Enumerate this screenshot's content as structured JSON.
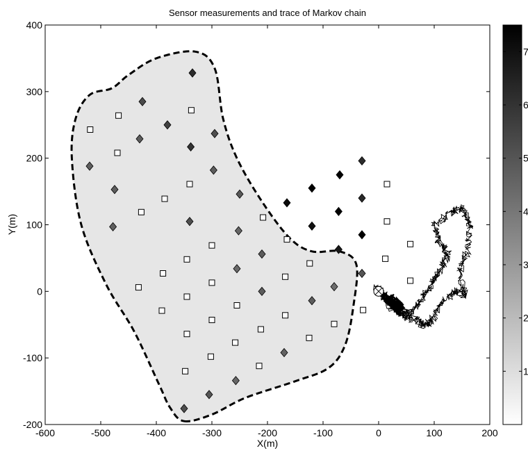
{
  "chart_data": {
    "type": "scatter",
    "title": "Sensor measurements and trace of Markov chain",
    "xlabel": "X(m)",
    "ylabel": "Y(m)",
    "xlim": [
      -600,
      200
    ],
    "ylim": [
      -200,
      400
    ],
    "xticks": [
      "-600",
      "-500",
      "-400",
      "-300",
      "-200",
      "-100",
      "0",
      "100",
      "200"
    ],
    "yticks": [
      "-200",
      "-100",
      "0",
      "100",
      "200",
      "300",
      "400"
    ],
    "grid": false,
    "colorbar": {
      "range": [
        0,
        7.5
      ],
      "ticks": [
        "1",
        "2",
        "3",
        "4",
        "5",
        "6",
        "7"
      ],
      "colormap": "white-to-black"
    },
    "region_boundary": [
      [
        -350,
        -195
      ],
      [
        -300,
        -185
      ],
      [
        -240,
        -160
      ],
      [
        -150,
        -135
      ],
      [
        -90,
        -115
      ],
      [
        -60,
        -80
      ],
      [
        -45,
        -20
      ],
      [
        -40,
        40
      ],
      [
        -70,
        60
      ],
      [
        -120,
        60
      ],
      [
        -160,
        80
      ],
      [
        -210,
        135
      ],
      [
        -255,
        200
      ],
      [
        -280,
        260
      ],
      [
        -295,
        335
      ],
      [
        -330,
        360
      ],
      [
        -400,
        350
      ],
      [
        -450,
        325
      ],
      [
        -480,
        305
      ],
      [
        -520,
        295
      ],
      [
        -545,
        260
      ],
      [
        -552,
        200
      ],
      [
        -535,
        100
      ],
      [
        -490,
        10
      ],
      [
        -440,
        -60
      ],
      [
        -395,
        -140
      ],
      [
        -375,
        -175
      ]
    ],
    "diamond_sensors": [
      {
        "x": -335,
        "y": 328,
        "v": 6.2
      },
      {
        "x": -425,
        "y": 285,
        "v": 5.3
      },
      {
        "x": -380,
        "y": 250,
        "v": 5.6
      },
      {
        "x": -295,
        "y": 237,
        "v": 5.2
      },
      {
        "x": -430,
        "y": 229,
        "v": 4.8
      },
      {
        "x": -338,
        "y": 217,
        "v": 6.0
      },
      {
        "x": -520,
        "y": 188,
        "v": 4.7
      },
      {
        "x": -297,
        "y": 182,
        "v": 4.8
      },
      {
        "x": -475,
        "y": 153,
        "v": 4.8
      },
      {
        "x": -250,
        "y": 146,
        "v": 4.9
      },
      {
        "x": -340,
        "y": 105,
        "v": 5.2
      },
      {
        "x": -478,
        "y": 97,
        "v": 4.7
      },
      {
        "x": -252,
        "y": 91,
        "v": 4.5
      },
      {
        "x": -210,
        "y": 56,
        "v": 4.8
      },
      {
        "x": -255,
        "y": 34,
        "v": 4.4
      },
      {
        "x": -210,
        "y": 0,
        "v": 4.8
      },
      {
        "x": -120,
        "y": -14,
        "v": 4.8
      },
      {
        "x": -80,
        "y": 7,
        "v": 4.3
      },
      {
        "x": -30,
        "y": 27,
        "v": 5.0
      },
      {
        "x": -170,
        "y": -92,
        "v": 4.6
      },
      {
        "x": -257,
        "y": -134,
        "v": 4.5
      },
      {
        "x": -305,
        "y": -155,
        "v": 5.0
      },
      {
        "x": -350,
        "y": -176,
        "v": 5.2
      },
      {
        "x": -165,
        "y": 133,
        "v": 7.2
      },
      {
        "x": -120,
        "y": 155,
        "v": 7.5
      },
      {
        "x": -70,
        "y": 175,
        "v": 7.5
      },
      {
        "x": -30,
        "y": 196,
        "v": 6.2
      },
      {
        "x": -120,
        "y": 98,
        "v": 7.0
      },
      {
        "x": -72,
        "y": 120,
        "v": 7.4
      },
      {
        "x": -30,
        "y": 140,
        "v": 6.3
      },
      {
        "x": -72,
        "y": 63,
        "v": 6.8
      },
      {
        "x": -30,
        "y": 85,
        "v": 7.5
      }
    ],
    "square_sensors": [
      [
        -519,
        243
      ],
      [
        -468,
        264
      ],
      [
        -470,
        208
      ],
      [
        -337,
        272
      ],
      [
        -427,
        119
      ],
      [
        -385,
        139
      ],
      [
        -340,
        161
      ],
      [
        -432,
        6
      ],
      [
        -388,
        27
      ],
      [
        -345,
        48
      ],
      [
        -300,
        69
      ],
      [
        -208,
        111
      ],
      [
        -165,
        78
      ],
      [
        -124,
        42
      ],
      [
        -390,
        -29
      ],
      [
        -345,
        -8
      ],
      [
        -300,
        13
      ],
      [
        -168,
        22
      ],
      [
        -255,
        -21
      ],
      [
        -300,
        -43
      ],
      [
        -168,
        -36
      ],
      [
        -212,
        -57
      ],
      [
        -80,
        -49
      ],
      [
        -125,
        -70
      ],
      [
        -345,
        -64
      ],
      [
        -258,
        -77
      ],
      [
        -302,
        -98
      ],
      [
        -215,
        -112
      ],
      [
        -348,
        -120
      ],
      [
        -28,
        -28
      ],
      [
        12,
        49
      ],
      [
        15,
        105
      ],
      [
        15,
        161
      ],
      [
        57,
        71
      ],
      [
        57,
        16
      ]
    ],
    "true_source": {
      "x": 0,
      "y": 0
    },
    "markov_chain": {
      "start": [
        0,
        0
      ],
      "waypoints": [
        [
          0,
          0
        ],
        [
          18,
          -20
        ],
        [
          40,
          -35
        ],
        [
          60,
          -40
        ],
        [
          80,
          -50
        ],
        [
          95,
          -45
        ],
        [
          110,
          -20
        ],
        [
          135,
          0
        ],
        [
          155,
          -5
        ],
        [
          145,
          30
        ],
        [
          160,
          60
        ],
        [
          165,
          100
        ],
        [
          150,
          125
        ],
        [
          130,
          118
        ],
        [
          100,
          100
        ],
        [
          108,
          75
        ],
        [
          125,
          55
        ],
        [
          110,
          30
        ],
        [
          95,
          10
        ],
        [
          75,
          -15
        ],
        [
          55,
          -35
        ],
        [
          30,
          -25
        ],
        [
          10,
          -5
        ],
        [
          -5,
          5
        ]
      ],
      "cluster": {
        "center": [
          25,
          -15
        ],
        "spread_x": 22,
        "spread_y": 14,
        "tilt_deg": -40
      }
    }
  }
}
